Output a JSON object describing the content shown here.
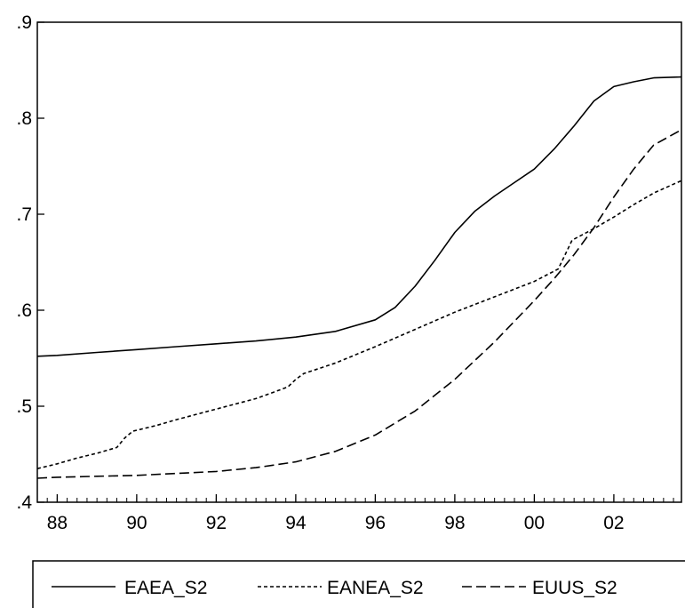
{
  "chart_data": {
    "type": "line",
    "title": "",
    "xlabel": "",
    "ylabel": "",
    "xlim": [
      1987.5,
      2003.7
    ],
    "ylim": [
      0.4,
      0.9
    ],
    "grid": false,
    "legend_position": "bottom",
    "x_ticks": [
      {
        "value": 1988,
        "label": "88"
      },
      {
        "value": 1990,
        "label": "90"
      },
      {
        "value": 1992,
        "label": "92"
      },
      {
        "value": 1994,
        "label": "94"
      },
      {
        "value": 1996,
        "label": "96"
      },
      {
        "value": 1998,
        "label": "98"
      },
      {
        "value": 2000,
        "label": "00"
      },
      {
        "value": 2002,
        "label": "02"
      }
    ],
    "y_ticks": [
      {
        "value": 0.4,
        "label": ".4"
      },
      {
        "value": 0.5,
        "label": ".5"
      },
      {
        "value": 0.6,
        "label": ".6"
      },
      {
        "value": 0.7,
        "label": ".7"
      },
      {
        "value": 0.8,
        "label": ".8"
      },
      {
        "value": 0.9,
        "label": ".9"
      }
    ],
    "series": [
      {
        "name": "EAEA_S2",
        "dash": "solid",
        "x": [
          1987.5,
          1988,
          1989,
          1990,
          1991,
          1992,
          1993,
          1994,
          1995,
          1996,
          1996.5,
          1997,
          1997.5,
          1998,
          1998.5,
          1999,
          1999.5,
          2000,
          2000.5,
          2001,
          2001.5,
          2002,
          2002.5,
          2003,
          2003.7
        ],
        "y": [
          0.552,
          0.553,
          0.556,
          0.559,
          0.562,
          0.565,
          0.568,
          0.572,
          0.578,
          0.59,
          0.603,
          0.625,
          0.652,
          0.681,
          0.703,
          0.719,
          0.733,
          0.747,
          0.768,
          0.792,
          0.818,
          0.833,
          0.838,
          0.842,
          0.843
        ]
      },
      {
        "name": "EANEA_S2",
        "dash": "short",
        "x": [
          1987.5,
          1988,
          1988.5,
          1989,
          1989.5,
          1989.7,
          1989.9,
          1990.5,
          1991,
          1992,
          1993,
          1993.8,
          1994.0,
          1994.2,
          1995,
          1996,
          1997,
          1998,
          1999,
          2000,
          2000.6,
          2000.8,
          2000.95,
          2001.5,
          2002,
          2002.5,
          2003,
          2003.7
        ],
        "y": [
          0.435,
          0.44,
          0.446,
          0.451,
          0.457,
          0.467,
          0.474,
          0.48,
          0.486,
          0.497,
          0.508,
          0.52,
          0.528,
          0.534,
          0.545,
          0.562,
          0.58,
          0.598,
          0.614,
          0.63,
          0.643,
          0.66,
          0.673,
          0.685,
          0.697,
          0.71,
          0.722,
          0.735
        ]
      },
      {
        "name": "EUUS_S2",
        "dash": "long",
        "x": [
          1987.5,
          1988,
          1989,
          1990,
          1991,
          1992,
          1993,
          1994,
          1995,
          1996,
          1997,
          1998,
          1999,
          2000,
          2000.5,
          2001,
          2001.5,
          2002,
          2002.5,
          2003,
          2003.7
        ],
        "y": [
          0.425,
          0.426,
          0.427,
          0.428,
          0.43,
          0.432,
          0.436,
          0.442,
          0.453,
          0.47,
          0.495,
          0.528,
          0.567,
          0.61,
          0.633,
          0.658,
          0.686,
          0.718,
          0.747,
          0.772,
          0.788
        ]
      }
    ]
  }
}
